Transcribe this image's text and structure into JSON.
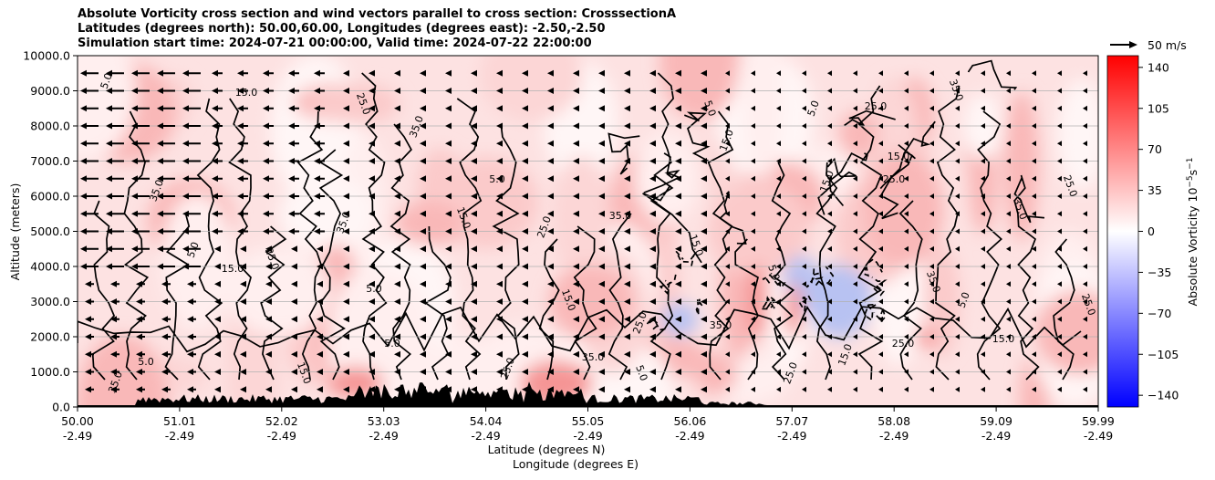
{
  "chart_data": {
    "type": "heatmap",
    "title_lines": [
      "Absolute Vorticity cross section and wind vectors parallel to cross section: CrosssectionA",
      "Latitudes (degrees north): 50.00,60.00, Longitudes (degrees east): -2.50,-2.50",
      "Simulation start time: 2024-07-21 00:00:00, Valid time: 2024-07-22 22:00:00"
    ],
    "ylabel": "Altitude (meters)",
    "xlabel_1": "Latitude (degrees N)",
    "xlabel_2": "Longitude (degrees E)",
    "ylim": [
      0,
      10000
    ],
    "y_ticks": [
      "0.0",
      "1000.0",
      "2000.0",
      "3000.0",
      "4000.0",
      "5000.0",
      "6000.0",
      "7000.0",
      "8000.0",
      "9000.0",
      "10000.0"
    ],
    "x_ticks": [
      {
        "lat": "50.00",
        "lon": "-2.49"
      },
      {
        "lat": "51.01",
        "lon": "-2.49"
      },
      {
        "lat": "52.02",
        "lon": "-2.49"
      },
      {
        "lat": "53.03",
        "lon": "-2.49"
      },
      {
        "lat": "54.04",
        "lon": "-2.49"
      },
      {
        "lat": "55.05",
        "lon": "-2.49"
      },
      {
        "lat": "56.06",
        "lon": "-2.49"
      },
      {
        "lat": "57.07",
        "lon": "-2.49"
      },
      {
        "lat": "58.08",
        "lon": "-2.49"
      },
      {
        "lat": "59.09",
        "lon": "-2.49"
      },
      {
        "lat": "59.99",
        "lon": "-2.49"
      }
    ],
    "grid": "horizontal",
    "colorbar": {
      "label": "Absolute Vorticity 10",
      "label_sup": "−5",
      "label_mid": "s",
      "label_sup2": "−1",
      "ticks": [
        "140",
        "105",
        "70",
        "35",
        "0",
        "−35",
        "−70",
        "−105",
        "−140"
      ],
      "range": [
        -150,
        150
      ],
      "colors": {
        "low": "#0000ff",
        "mid": "#ffffff",
        "high": "#ff0000"
      }
    },
    "quiver_key": {
      "label": "50 m/s"
    },
    "contour_levels": [
      "5.0",
      "15.0",
      "25.0",
      "35.0"
    ]
  }
}
